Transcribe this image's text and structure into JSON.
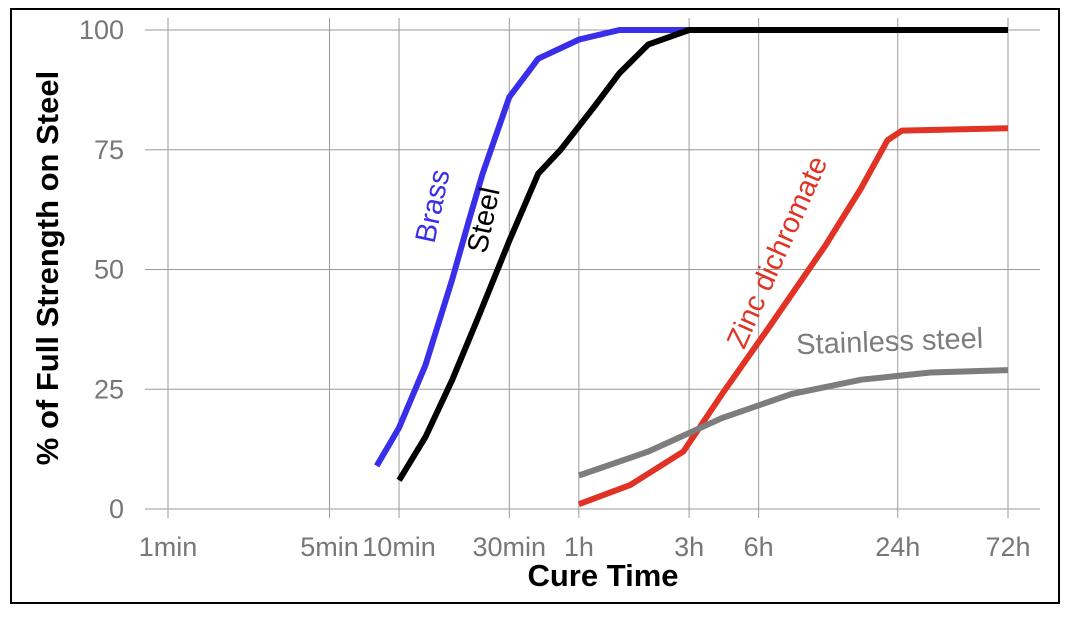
{
  "chart_data": {
    "type": "line",
    "xlabel": "Cure Time",
    "ylabel": "% of Full Strength on Steel",
    "x_scale": "log",
    "x_unit": "min",
    "x_ticks": [
      {
        "label": "1min",
        "value": 1
      },
      {
        "label": "5min",
        "value": 5
      },
      {
        "label": "10min",
        "value": 10
      },
      {
        "label": "30min",
        "value": 30
      },
      {
        "label": "1h",
        "value": 60
      },
      {
        "label": "3h",
        "value": 180
      },
      {
        "label": "6h",
        "value": 360
      },
      {
        "label": "24h",
        "value": 1440
      },
      {
        "label": "72h",
        "value": 4320
      }
    ],
    "y_ticks": [
      0,
      25,
      50,
      75,
      100
    ],
    "ylim": [
      0,
      100
    ],
    "grid": true,
    "series": [
      {
        "name": "Brass",
        "color": "#3a2fe8",
        "points": [
          [
            8,
            9
          ],
          [
            10,
            17
          ],
          [
            13,
            30
          ],
          [
            17,
            48
          ],
          [
            20,
            60
          ],
          [
            23,
            70
          ],
          [
            30,
            86
          ],
          [
            40,
            94
          ],
          [
            60,
            98
          ],
          [
            90,
            100
          ],
          [
            4320,
            100
          ]
        ]
      },
      {
        "name": "Steel",
        "color": "#000000",
        "points": [
          [
            10,
            6
          ],
          [
            13,
            15
          ],
          [
            17,
            27
          ],
          [
            22,
            40
          ],
          [
            30,
            56
          ],
          [
            40,
            70
          ],
          [
            50,
            75
          ],
          [
            70,
            84
          ],
          [
            90,
            91
          ],
          [
            120,
            97
          ],
          [
            180,
            100
          ],
          [
            4320,
            100
          ]
        ]
      },
      {
        "name": "Zinc dichromate",
        "color": "#e03325",
        "points": [
          [
            60,
            1
          ],
          [
            100,
            5
          ],
          [
            170,
            12
          ],
          [
            250,
            24
          ],
          [
            400,
            38
          ],
          [
            700,
            55
          ],
          [
            1000,
            67
          ],
          [
            1300,
            77
          ],
          [
            1500,
            79
          ],
          [
            4320,
            79.5
          ]
        ]
      },
      {
        "name": "Stainless steel",
        "color": "#7d7d7d",
        "points": [
          [
            60,
            7
          ],
          [
            120,
            12
          ],
          [
            250,
            19
          ],
          [
            500,
            24
          ],
          [
            1000,
            27
          ],
          [
            2000,
            28.5
          ],
          [
            4320,
            29
          ]
        ]
      }
    ]
  }
}
